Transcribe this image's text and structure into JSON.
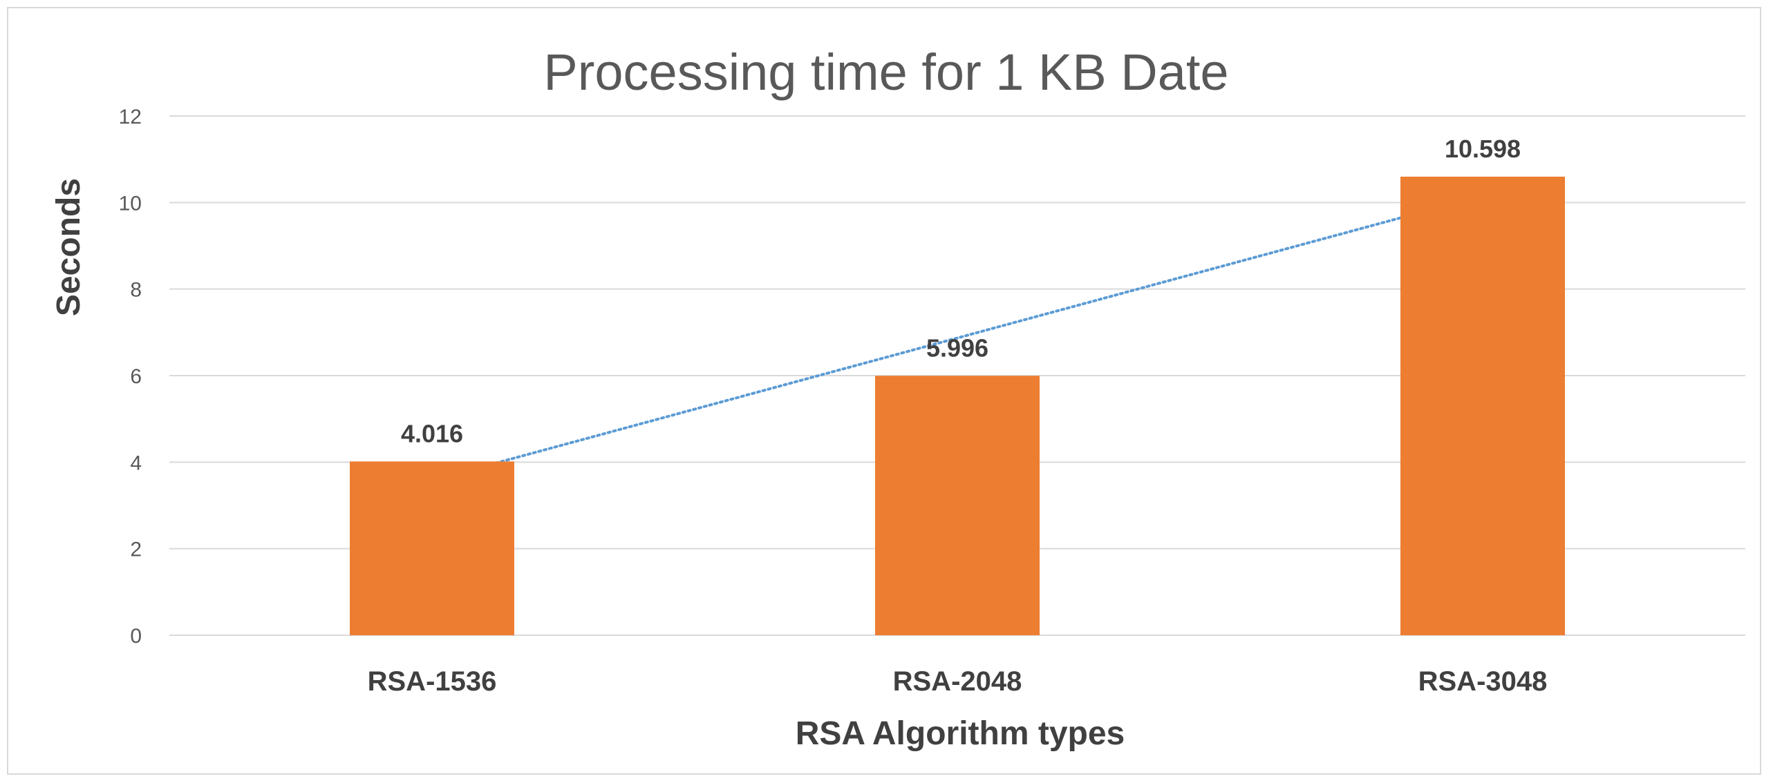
{
  "chart_data": {
    "type": "bar",
    "title": "Processing time for 1 KB Date",
    "xlabel": "RSA Algorithm types",
    "ylabel": "Seconds",
    "categories": [
      "RSA-1536",
      "RSA-2048",
      "RSA-3048"
    ],
    "values": [
      4.016,
      5.996,
      10.598
    ],
    "data_labels": [
      "4.016",
      "5.996",
      "10.598"
    ],
    "ylim": [
      0,
      12
    ],
    "yticks": [
      "0",
      "2",
      "4",
      "6",
      "8",
      "10",
      "12"
    ],
    "grid": true,
    "legend": "none",
    "trendline": "linear",
    "colors": {
      "bar": "#ED7D31",
      "trendline": "#5B9BD5",
      "grid": "#d9d9d9"
    }
  }
}
